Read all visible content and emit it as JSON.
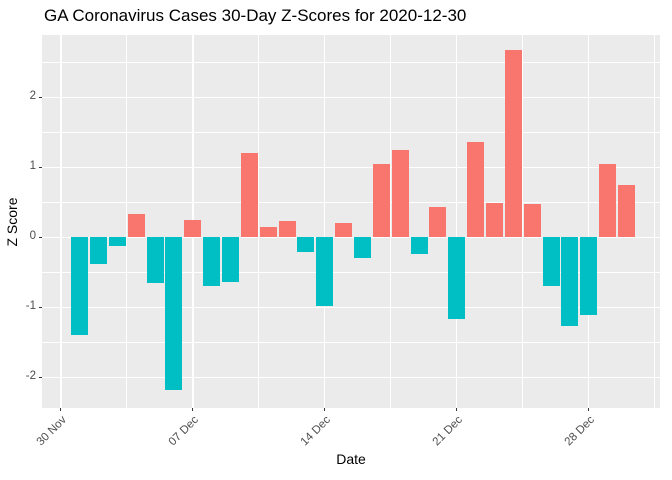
{
  "chart_data": {
    "type": "bar",
    "title": "GA Coronavirus Cases 30-Day Z-Scores for 2020-12-30",
    "xlabel": "Date",
    "ylabel": "Z Score",
    "dates": [
      "2020-12-01",
      "2020-12-02",
      "2020-12-03",
      "2020-12-04",
      "2020-12-05",
      "2020-12-06",
      "2020-12-07",
      "2020-12-08",
      "2020-12-09",
      "2020-12-10",
      "2020-12-11",
      "2020-12-12",
      "2020-12-13",
      "2020-12-14",
      "2020-12-15",
      "2020-12-16",
      "2020-12-17",
      "2020-12-18",
      "2020-12-19",
      "2020-12-20",
      "2020-12-21",
      "2020-12-22",
      "2020-12-23",
      "2020-12-24",
      "2020-12-25",
      "2020-12-26",
      "2020-12-27",
      "2020-12-28",
      "2020-12-29",
      "2020-12-30"
    ],
    "values": [
      -1.39,
      -0.38,
      -0.13,
      0.33,
      -0.65,
      -2.18,
      0.25,
      -0.69,
      -0.64,
      1.21,
      0.14,
      0.23,
      -0.21,
      -0.98,
      0.21,
      -0.29,
      1.04,
      1.24,
      -0.24,
      0.43,
      -1.17,
      1.36,
      0.49,
      2.68,
      0.47,
      -0.69,
      -1.27,
      -1.11,
      1.04,
      0.74
    ],
    "x_tick_labels": [
      "30 Nov",
      "07 Dec",
      "14 Dec",
      "21 Dec",
      "28 Dec"
    ],
    "x_tick_days": [
      -1,
      6,
      13,
      20,
      27
    ],
    "x_minor_days": [
      2.5,
      9.5,
      16.5,
      23.5,
      30.5
    ],
    "y_ticks": [
      -2,
      -1,
      0,
      1,
      2
    ],
    "y_tick_labels": [
      "-2",
      "-1",
      "0",
      "1",
      "2"
    ],
    "y_minor": [
      -1.5,
      -0.5,
      0.5,
      1.5,
      2.5
    ],
    "ylim": [
      -2.44,
      2.89
    ],
    "colors": {
      "positive": "#F8766D",
      "negative": "#00BFC4",
      "panel_background": "#EBEBEB",
      "grid": "#FFFFFF",
      "axis_text": "#4D4D4D",
      "tick_marks": "#333333",
      "title_text": "#000000"
    },
    "legend": "none",
    "grid": "on"
  }
}
